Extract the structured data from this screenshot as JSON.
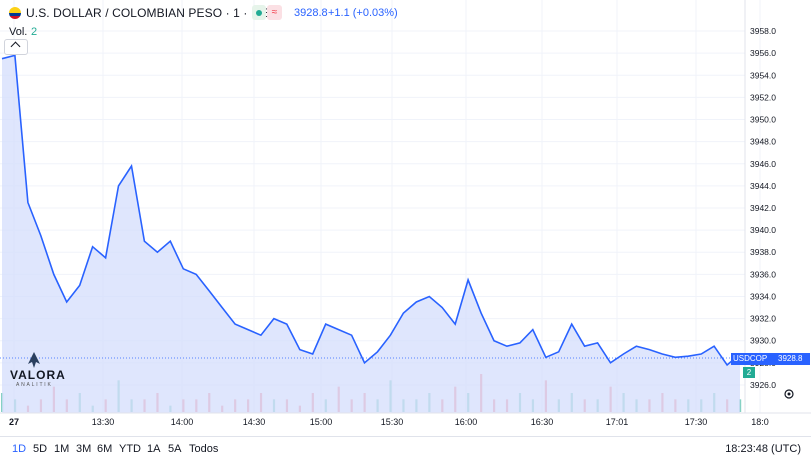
{
  "header": {
    "symbol": "U.S. DOLLAR / COLOMBIAN PESO · 1 · ICE",
    "last_price": "3928.8",
    "change": "+1.1 (+0.03%)",
    "delay_badge": "≈",
    "open_badge_color": "#22ab94",
    "delay_badge_color": "#f23645"
  },
  "volume_legend": {
    "label": "Vol.",
    "value": "2"
  },
  "logo": {
    "name": "VALORA",
    "sub": "ANALITIK"
  },
  "price_tag": {
    "symbol": "USDCOP",
    "value": "3928.8"
  },
  "volume_tag": "2",
  "toolbar": {
    "ranges": [
      "1D",
      "5D",
      "1M",
      "3M",
      "6M",
      "YTD",
      "1A",
      "5A",
      "Todos"
    ],
    "active": "1D",
    "clock": "18:23:48 (UTC)"
  },
  "colors": {
    "line": "#2962ff",
    "fill": "#c9d6fb",
    "up": "#22ab94",
    "down": "#f23645"
  },
  "icons": [
    "flag-co-icon",
    "chevron-up-icon",
    "settings-icon"
  ],
  "chart_data": {
    "type": "area",
    "title": "",
    "xlabel": "",
    "ylabel": "",
    "ylim": [
      3925,
      3959
    ],
    "y_ticks": [
      "3958.0",
      "3956.0",
      "3954.0",
      "3952.0",
      "3950.0",
      "3948.0",
      "3946.0",
      "3944.0",
      "3942.0",
      "3940.0",
      "3938.0",
      "3936.0",
      "3934.0",
      "3932.0",
      "3930.0",
      "3928.0",
      "3926.0"
    ],
    "x_ticks": [
      "27",
      "13:30",
      "14:00",
      "14:30",
      "15:00",
      "15:30",
      "16:00",
      "16:30",
      "17:01",
      "17:30",
      "18:0"
    ],
    "x": [
      "13:00",
      "13:05",
      "13:10",
      "13:15",
      "13:20",
      "13:25",
      "13:30",
      "13:35",
      "13:40",
      "13:45",
      "13:50",
      "13:55",
      "14:00",
      "14:05",
      "14:10",
      "14:15",
      "14:20",
      "14:25",
      "14:30",
      "14:35",
      "14:40",
      "14:45",
      "14:50",
      "14:55",
      "15:00",
      "15:05",
      "15:10",
      "15:15",
      "15:20",
      "15:25",
      "15:30",
      "15:35",
      "15:40",
      "15:45",
      "15:50",
      "15:55",
      "16:00",
      "16:05",
      "16:10",
      "16:15",
      "16:20",
      "16:25",
      "16:30",
      "16:35",
      "16:40",
      "16:45",
      "16:50",
      "16:55",
      "17:00",
      "17:05",
      "17:10",
      "17:15",
      "17:20",
      "17:25",
      "17:30",
      "17:35",
      "17:40",
      "17:45"
    ],
    "series": [
      {
        "name": "",
        "values": [
          3955.5,
          3955.8,
          3942.5,
          3939.5,
          3936.0,
          3933.5,
          3935.0,
          3938.5,
          3937.5,
          3944.0,
          3945.8,
          3939.0,
          3938.0,
          3939.0,
          3936.5,
          3936.0,
          3934.5,
          3933.0,
          3931.5,
          3931.0,
          3930.5,
          3932.0,
          3931.5,
          3929.2,
          3928.8,
          3931.5,
          3931.0,
          3930.5,
          3928.0,
          3929.0,
          3930.5,
          3932.5,
          3933.5,
          3934.0,
          3933.0,
          3931.5,
          3935.5,
          3932.5,
          3930.0,
          3929.5,
          3929.8,
          3931.0,
          3928.5,
          3929.0,
          3931.5,
          3929.5,
          3929.8,
          3928.0,
          3928.8,
          3929.5,
          3929.2,
          3928.8,
          3928.5,
          3928.6,
          3928.8,
          3929.5,
          3927.8,
          3928.8
        ]
      }
    ],
    "volume": {
      "values": [
        3,
        2,
        1,
        2,
        4,
        2,
        3,
        1,
        2,
        5,
        2,
        2,
        3,
        1,
        2,
        2,
        3,
        1,
        2,
        2,
        3,
        2,
        2,
        1,
        3,
        2,
        4,
        2,
        3,
        2,
        5,
        2,
        2,
        3,
        2,
        4,
        3,
        6,
        2,
        2,
        3,
        2,
        5,
        2,
        3,
        2,
        2,
        4,
        3,
        2,
        2,
        3,
        2,
        2,
        2,
        3,
        2,
        2
      ]
    },
    "grid": true,
    "legend": "none"
  }
}
